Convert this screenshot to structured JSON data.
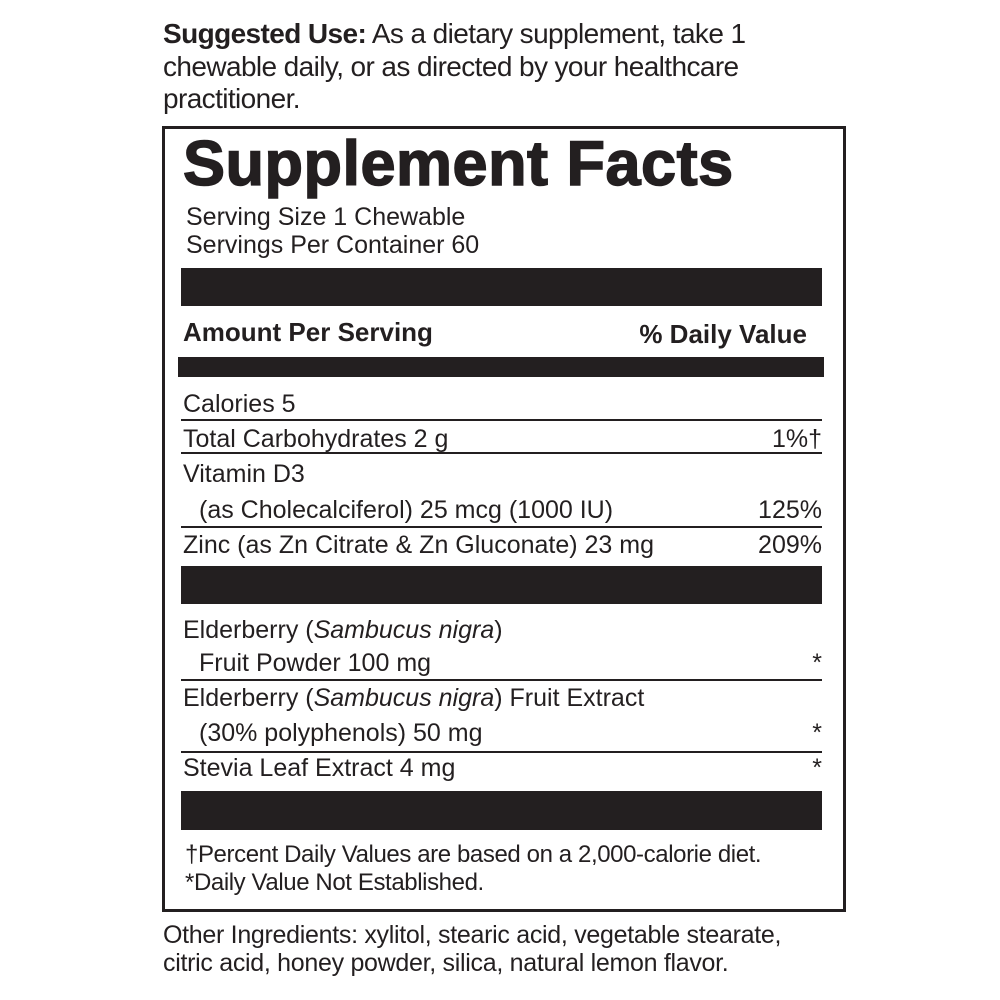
{
  "suggested_use": {
    "label": "Suggested Use:",
    "text": " As a dietary supplement, take 1 chewable daily, or as directed by your healthcare practitioner."
  },
  "facts": {
    "title": "Supplement Facts",
    "serving_size": "Serving Size 1 Chewable",
    "servings_per_container": "Servings Per Container 60",
    "amount_header": "Amount Per Serving",
    "dv_header": "% Daily Value",
    "rows": [
      {
        "name": "Calories 5",
        "dv": ""
      },
      {
        "name": "Total Carbohydrates 2 g",
        "dv": "1%†"
      },
      {
        "name": "Vitamin D3",
        "detail": "(as Cholecalciferol) 25 mcg (1000 IU)",
        "dv": "125%"
      },
      {
        "name": "Zinc (as Zn Citrate & Zn Gluconate) 23 mg",
        "dv": "209%"
      }
    ],
    "botanicals": [
      {
        "pre": "Elderberry (",
        "latin": "Sambucus nigra",
        "post": ")",
        "detail": "Fruit Powder 100 mg",
        "dv": "*"
      },
      {
        "pre": "Elderberry (",
        "latin": "Sambucus nigra",
        "post": ") Fruit Extract",
        "detail": "(30% polyphenols) 50 mg",
        "dv": "*"
      },
      {
        "name": "Stevia Leaf Extract 4 mg",
        "dv": "*"
      }
    ],
    "footnote_1": "†Percent Daily Values are based on a 2,000-calorie diet.",
    "footnote_2": "*Daily Value Not Established."
  },
  "other_ingredients": {
    "line1": "Other Ingredients: xylitol, stearic acid, vegetable stearate,",
    "line2": "citric acid, honey powder, silica, natural lemon flavor."
  },
  "colors": {
    "ink": "#231f20",
    "background": "#ffffff"
  }
}
